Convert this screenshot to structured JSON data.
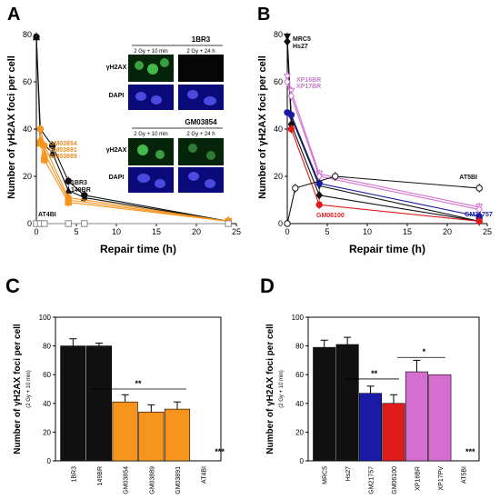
{
  "panels": {
    "A": "A",
    "B": "B",
    "C": "C",
    "D": "D"
  },
  "colors": {
    "black": "#111111",
    "orange": "#f7941d",
    "orange_text": "#e0902a",
    "blue": "#1a1aa6",
    "red": "#e01b1b",
    "pink": "#d46fd1",
    "pink_text": "#c77cc4",
    "gray": "#888888",
    "grid": "#000000"
  },
  "inset": {
    "cell1": "1BR3",
    "cell2": "GM03854",
    "col1": "2 Gy + 10 min",
    "col2": "2 Gy + 24 h",
    "row1": "γH2AX",
    "row2": "DAPI"
  },
  "chart_data": [
    {
      "panel": "A",
      "type": "line",
      "ylabel": "Number of γH2AX foci per cell",
      "xlabel": "Repair time (h)",
      "xlim": [
        0,
        25
      ],
      "ylim": [
        0,
        80
      ],
      "xticks": [
        0,
        5,
        10,
        15,
        20,
        25
      ],
      "yticks": [
        0,
        20,
        40,
        60,
        80
      ],
      "series": [
        {
          "name": "1BR3",
          "color": "black",
          "marker": "circle-filled",
          "x": [
            0,
            0.5,
            2,
            4,
            6,
            24
          ],
          "y": [
            79,
            40,
            33,
            18,
            12,
            1
          ]
        },
        {
          "name": "149BR",
          "color": "black",
          "marker": "triangle-filled",
          "x": [
            0,
            0.5,
            2,
            4,
            6,
            24
          ],
          "y": [
            79,
            35,
            30,
            14,
            11,
            1
          ]
        },
        {
          "name": "GM03854",
          "color": "orange",
          "marker": "circle-filled",
          "x": [
            0.5,
            1,
            4,
            24
          ],
          "y": [
            40,
            33,
            11,
            1
          ]
        },
        {
          "name": "GM03891",
          "color": "orange",
          "marker": "triangle-filled",
          "x": [
            0.5,
            1,
            4,
            24
          ],
          "y": [
            36,
            30,
            10,
            1
          ]
        },
        {
          "name": "GM03889",
          "color": "orange",
          "marker": "square-filled",
          "x": [
            0.5,
            1,
            4,
            24
          ],
          "y": [
            34,
            27,
            9,
            1
          ]
        },
        {
          "name": "AT4BI",
          "color": "gray",
          "marker": "square-open",
          "x": [
            0,
            0.5,
            1,
            4,
            6,
            24
          ],
          "y": [
            0,
            0,
            0,
            0,
            0,
            0
          ]
        }
      ],
      "labels": {
        "black1": "1BR3",
        "black2": "149BR",
        "orange1": "GM03854",
        "orange2": "GM03891",
        "orange3": "GM03889",
        "gray": "AT4BI"
      }
    },
    {
      "panel": "B",
      "type": "line",
      "ylabel": "Number of γH2AX foci per cell",
      "xlabel": "Repair time (h)",
      "xlim": [
        0,
        25
      ],
      "ylim": [
        0,
        80
      ],
      "xticks": [
        0,
        5,
        10,
        15,
        20,
        25
      ],
      "yticks": [
        0,
        20,
        40,
        60,
        80
      ],
      "series": [
        {
          "name": "MRC5",
          "color": "black",
          "marker": "triangle-down-filled",
          "x": [
            0,
            0.5,
            4,
            24
          ],
          "y": [
            79,
            45,
            16,
            1
          ]
        },
        {
          "name": "Hs27",
          "color": "black",
          "marker": "diamond-filled",
          "x": [
            0,
            0.5,
            4,
            24
          ],
          "y": [
            77,
            42,
            12,
            1
          ]
        },
        {
          "name": "XP16BR",
          "color": "pink",
          "marker": "triangle-down-open",
          "x": [
            0,
            0.5,
            4,
            24
          ],
          "y": [
            62,
            56,
            21,
            7
          ]
        },
        {
          "name": "XP17BR",
          "color": "pink",
          "marker": "diamond-open",
          "x": [
            0,
            0.5,
            4,
            24
          ],
          "y": [
            60,
            54,
            20,
            6
          ]
        },
        {
          "name": "GM21757",
          "color": "blue",
          "marker": "circle-filled",
          "x": [
            0,
            0.5,
            4,
            24
          ],
          "y": [
            47,
            46,
            17,
            3
          ]
        },
        {
          "name": "GM06100",
          "color": "red",
          "marker": "circle-filled",
          "x": [
            0.5,
            4,
            24
          ],
          "y": [
            40,
            8,
            1
          ]
        },
        {
          "name": "AT5BI",
          "color": "black",
          "marker": "circle-open",
          "x": [
            0,
            1,
            6,
            24
          ],
          "y": [
            0,
            15,
            20,
            15
          ]
        }
      ],
      "labels": {
        "mrc5": "MRC5",
        "hs27": "Hs27",
        "xp16": "XP16BR",
        "xp17": "XP17BR",
        "gm21757": "GM21757",
        "gm06100": "GM06100",
        "at5bi": "AT5BI"
      }
    },
    {
      "panel": "C",
      "type": "bar",
      "ylabel": "Number of γH2AX foci per cell",
      "ysublabel": "(2 Gy + 10 min)",
      "ylim": [
        0,
        100
      ],
      "yticks": [
        0,
        20,
        40,
        60,
        80,
        100
      ],
      "categories": [
        "1BR3",
        "149BR",
        "GM03854",
        "GM03889",
        "GM03891",
        "AT4BI"
      ],
      "values": [
        80,
        80,
        41,
        34,
        36,
        0
      ],
      "errors": [
        5,
        2,
        5,
        5,
        5,
        0
      ],
      "bar_colors": [
        "black",
        "black",
        "orange",
        "orange",
        "orange",
        "none"
      ],
      "annotations": {
        "bracket": "**",
        "at_bar": "***"
      }
    },
    {
      "panel": "D",
      "type": "bar",
      "ylabel": "Number of γH2AX foci per cell",
      "ysublabel": "(2 Gy + 10 min)",
      "ylim": [
        0,
        100
      ],
      "yticks": [
        0,
        20,
        40,
        60,
        80,
        100
      ],
      "categories": [
        "MRC5",
        "Hs27",
        "GM21757",
        "GM06100",
        "XP16BR",
        "XP17PV",
        "AT5BI"
      ],
      "values": [
        79,
        81,
        47,
        40,
        62,
        60,
        0
      ],
      "errors": [
        5,
        5,
        5,
        6,
        8,
        0,
        0
      ],
      "bar_colors": [
        "black",
        "black",
        "blue",
        "red",
        "pink",
        "pink",
        "none"
      ],
      "annotations": {
        "bracket1": "**",
        "bracket2": "*",
        "at_bar": "***"
      }
    }
  ]
}
